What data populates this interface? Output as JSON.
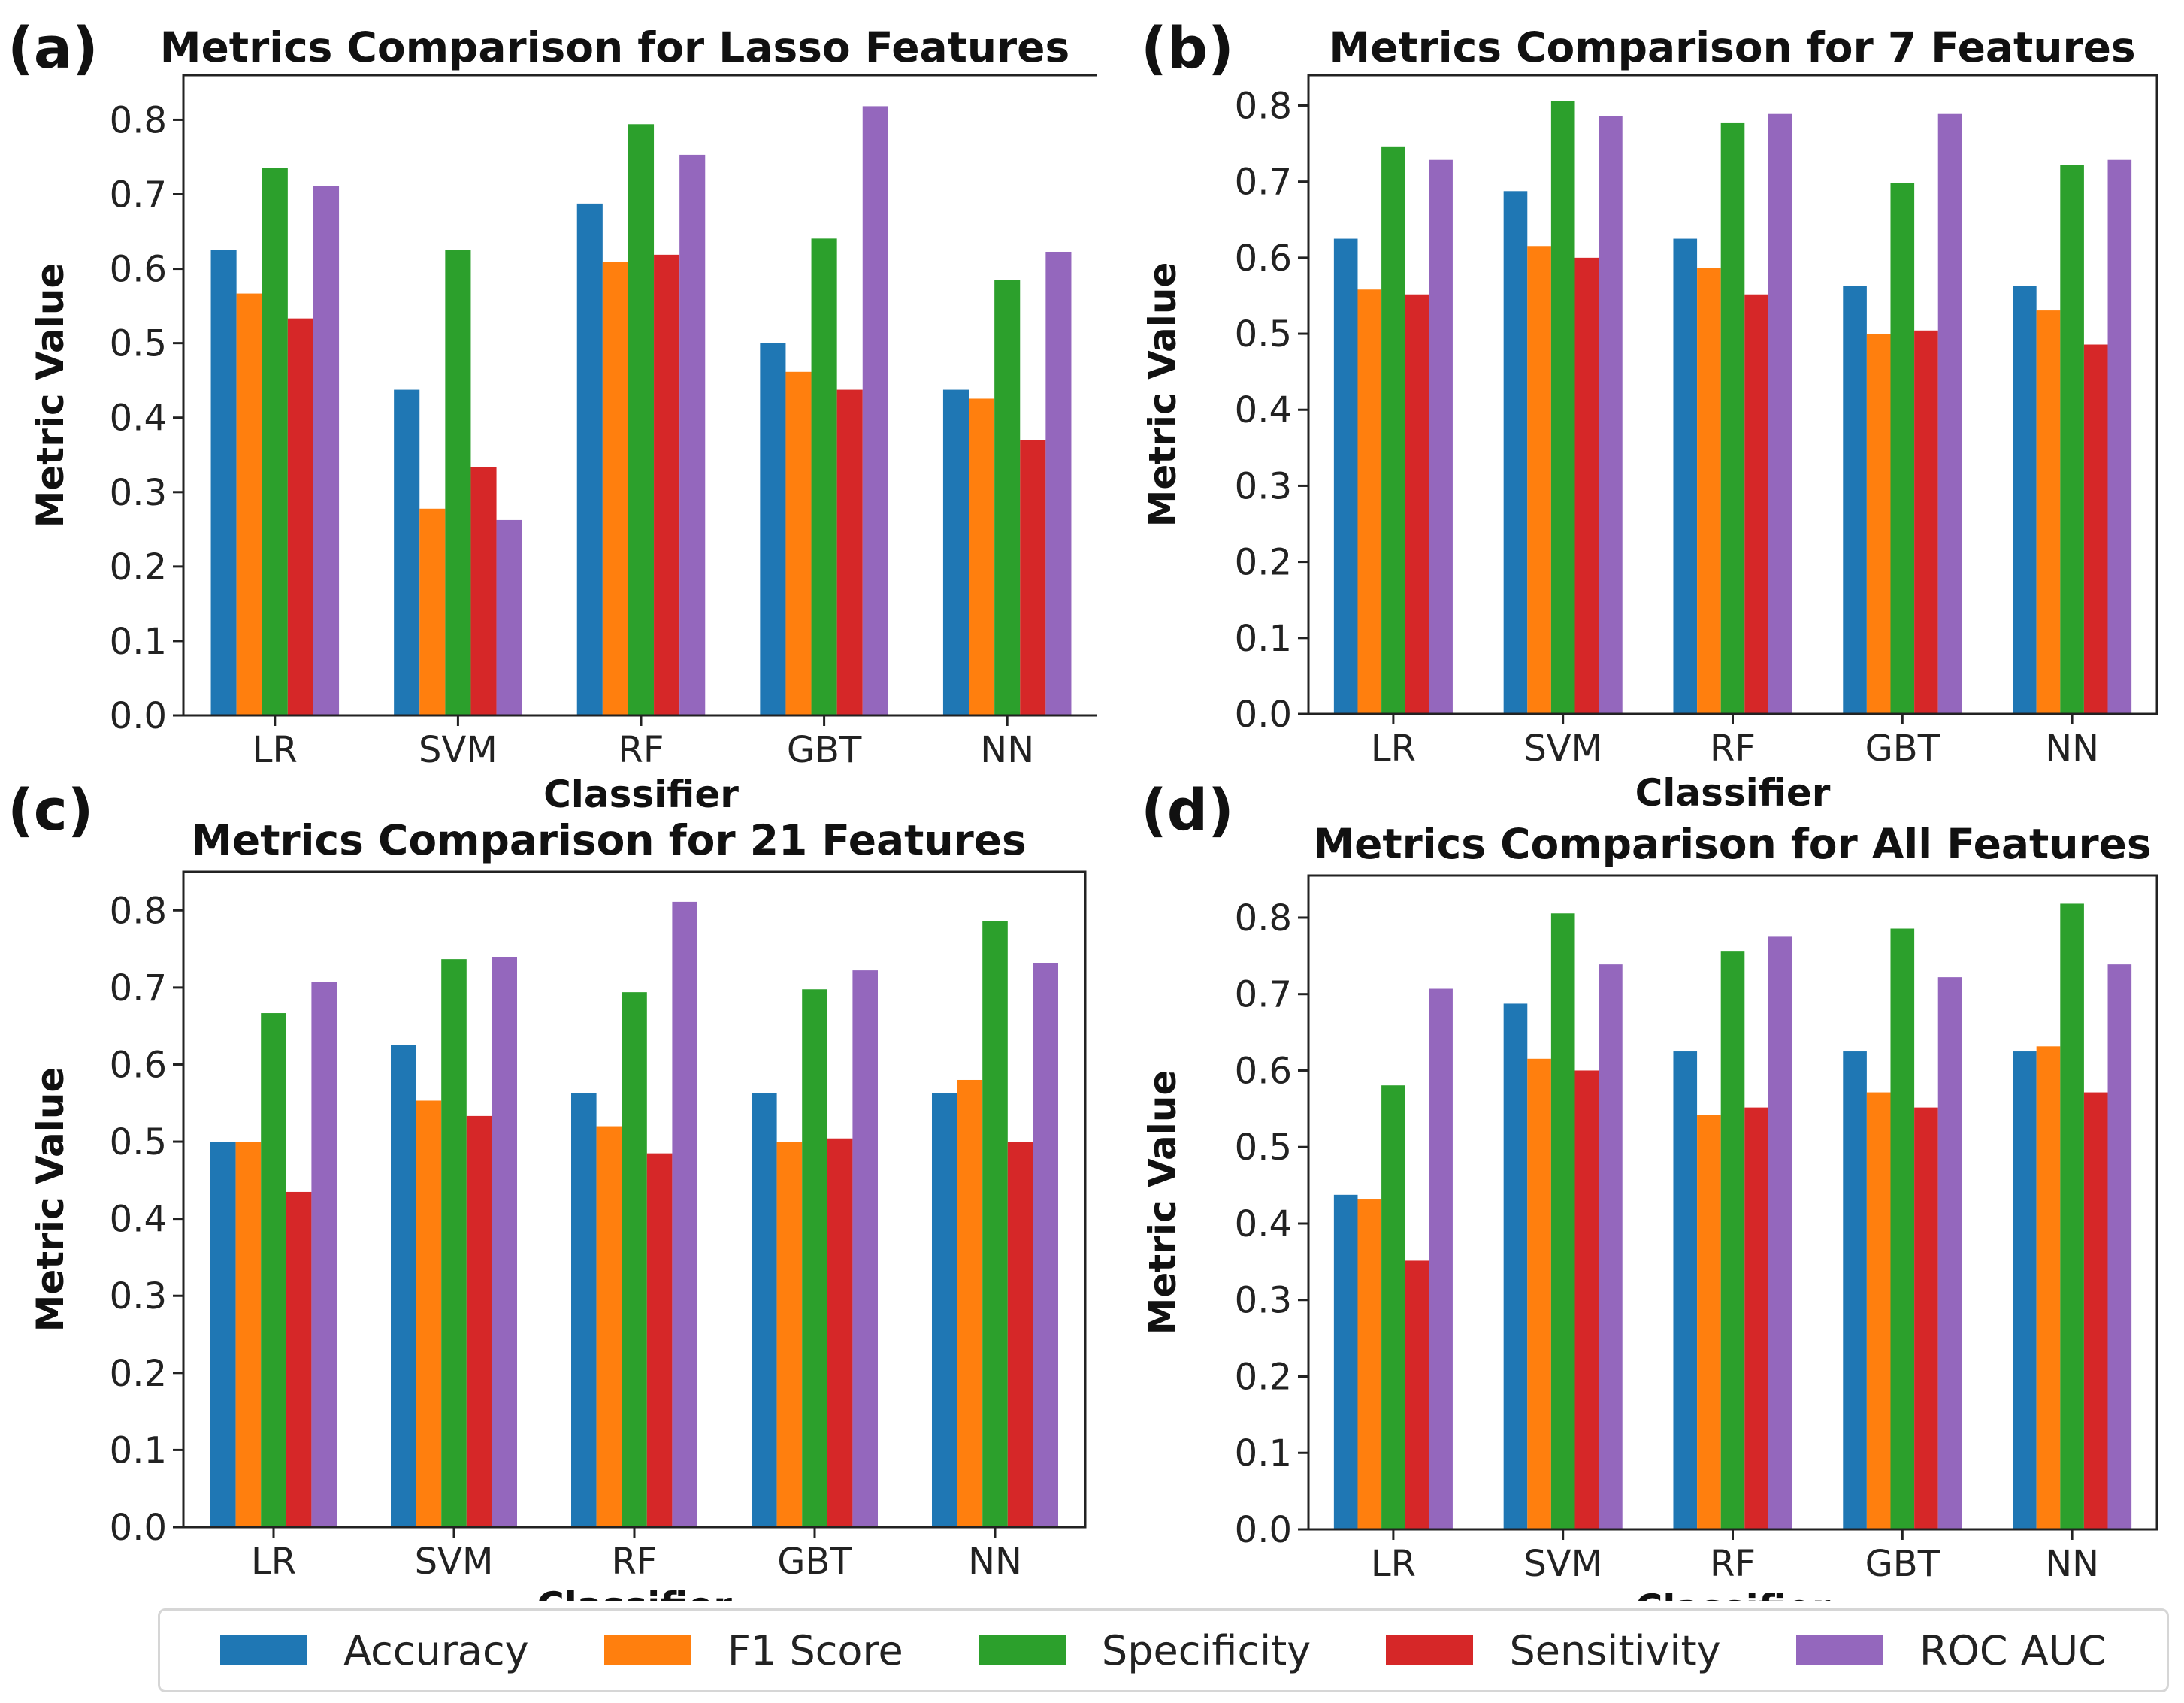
{
  "chart_data": [
    {
      "type": "bar",
      "panel_label": "(a)",
      "title": "Metrics Comparison for Lasso Features",
      "xlabel": "Classifier",
      "ylabel": "Metric Value",
      "categories": [
        "LR",
        "SVM",
        "RF",
        "GBT",
        "NN"
      ],
      "ylim": [
        0,
        0.86
      ],
      "yticks": [
        "0.0",
        "0.1",
        "0.2",
        "0.3",
        "0.4",
        "0.5",
        "0.6",
        "0.7",
        "0.8"
      ],
      "series": [
        {
          "name": "Accuracy",
          "values": [
            0.625,
            0.4375,
            0.6875,
            0.5,
            0.4375
          ]
        },
        {
          "name": "F1 Score",
          "values": [
            0.5667,
            0.2778,
            0.6087,
            0.4615,
            0.4255
          ]
        },
        {
          "name": "Specificity",
          "values": [
            0.7353,
            0.625,
            0.7941,
            0.6406,
            0.5849
          ]
        },
        {
          "name": "Sensitivity",
          "values": [
            0.5333,
            0.3333,
            0.6189,
            0.4375,
            0.3704
          ]
        },
        {
          "name": "ROC AUC",
          "values": [
            0.7111,
            0.2625,
            0.7531,
            0.8182,
            0.6228
          ]
        }
      ]
    },
    {
      "type": "bar",
      "panel_label": "(b)",
      "title": "Metrics Comparison for 7 Features",
      "xlabel": "Classifier",
      "ylabel": "Metric Value",
      "categories": [
        "LR",
        "SVM",
        "RF",
        "GBT",
        "NN"
      ],
      "ylim": [
        0,
        0.84
      ],
      "yticks": [
        "0.0",
        "0.1",
        "0.2",
        "0.3",
        "0.4",
        "0.5",
        "0.6",
        "0.7",
        "0.8"
      ],
      "series": [
        {
          "name": "Accuracy",
          "values": [
            0.625,
            0.6875,
            0.625,
            0.5625,
            0.5625
          ]
        },
        {
          "name": "F1 Score",
          "values": [
            0.5581,
            0.6154,
            0.5868,
            0.5,
            0.5306
          ]
        },
        {
          "name": "Specificity",
          "values": [
            0.7463,
            0.8056,
            0.7778,
            0.6977,
            0.7222
          ]
        },
        {
          "name": "Sensitivity",
          "values": [
            0.5517,
            0.6,
            0.5517,
            0.5042,
            0.4857
          ]
        },
        {
          "name": "ROC AUC",
          "values": [
            0.7286,
            0.7857,
            0.7889,
            0.7889,
            0.7286
          ]
        }
      ]
    },
    {
      "type": "bar",
      "panel_label": "(c)",
      "title": "Metrics Comparison for 21 Features",
      "xlabel": "Classifier",
      "ylabel": "Metric Value",
      "categories": [
        "LR",
        "SVM",
        "RF",
        "GBT",
        "NN"
      ],
      "ylim": [
        0,
        0.85
      ],
      "yticks": [
        "0.0",
        "0.1",
        "0.2",
        "0.3",
        "0.4",
        "0.5",
        "0.6",
        "0.7",
        "0.8"
      ],
      "series": [
        {
          "name": "Accuracy",
          "values": [
            0.5,
            0.625,
            0.5625,
            0.5625,
            0.5625
          ]
        },
        {
          "name": "F1 Score",
          "values": [
            0.5,
            0.5532,
            0.52,
            0.5,
            0.58
          ]
        },
        {
          "name": "Specificity",
          "values": [
            0.6667,
            0.7368,
            0.6939,
            0.6977,
            0.7857
          ]
        },
        {
          "name": "Sensitivity",
          "values": [
            0.4348,
            0.5333,
            0.4848,
            0.5042,
            0.5
          ]
        },
        {
          "name": "ROC AUC",
          "values": [
            0.7071,
            0.7389,
            0.8111,
            0.7222,
            0.7313
          ]
        }
      ]
    },
    {
      "type": "bar",
      "panel_label": "(d)",
      "title": "Metrics Comparison for All Features",
      "xlabel": "Classifier",
      "ylabel": "Metric Value",
      "categories": [
        "LR",
        "SVM",
        "RF",
        "GBT",
        "NN"
      ],
      "ylim": [
        0,
        0.855
      ],
      "yticks": [
        "0.0",
        "0.1",
        "0.2",
        "0.3",
        "0.4",
        "0.5",
        "0.6",
        "0.7",
        "0.8"
      ],
      "series": [
        {
          "name": "Accuracy",
          "values": [
            0.4375,
            0.6875,
            0.625,
            0.625,
            0.625
          ]
        },
        {
          "name": "F1 Score",
          "values": [
            0.4314,
            0.6154,
            0.5417,
            0.5714,
            0.6316
          ]
        },
        {
          "name": "Specificity",
          "values": [
            0.5806,
            0.8056,
            0.7556,
            0.7857,
            0.8182
          ]
        },
        {
          "name": "Sensitivity",
          "values": [
            0.3514,
            0.6,
            0.5517,
            0.5517,
            0.5714
          ]
        },
        {
          "name": "ROC AUC",
          "values": [
            0.7071,
            0.7389,
            0.775,
            0.7222,
            0.7389
          ]
        }
      ]
    }
  ],
  "legend": {
    "placement": "bottom",
    "items": [
      {
        "label": "Accuracy",
        "color": "#1f77b4"
      },
      {
        "label": "F1 Score",
        "color": "#ff7f0e"
      },
      {
        "label": "Specificity",
        "color": "#2ca02c"
      },
      {
        "label": "Sensitivity",
        "color": "#d62728"
      },
      {
        "label": "ROC AUC",
        "color": "#9467bd"
      }
    ]
  }
}
